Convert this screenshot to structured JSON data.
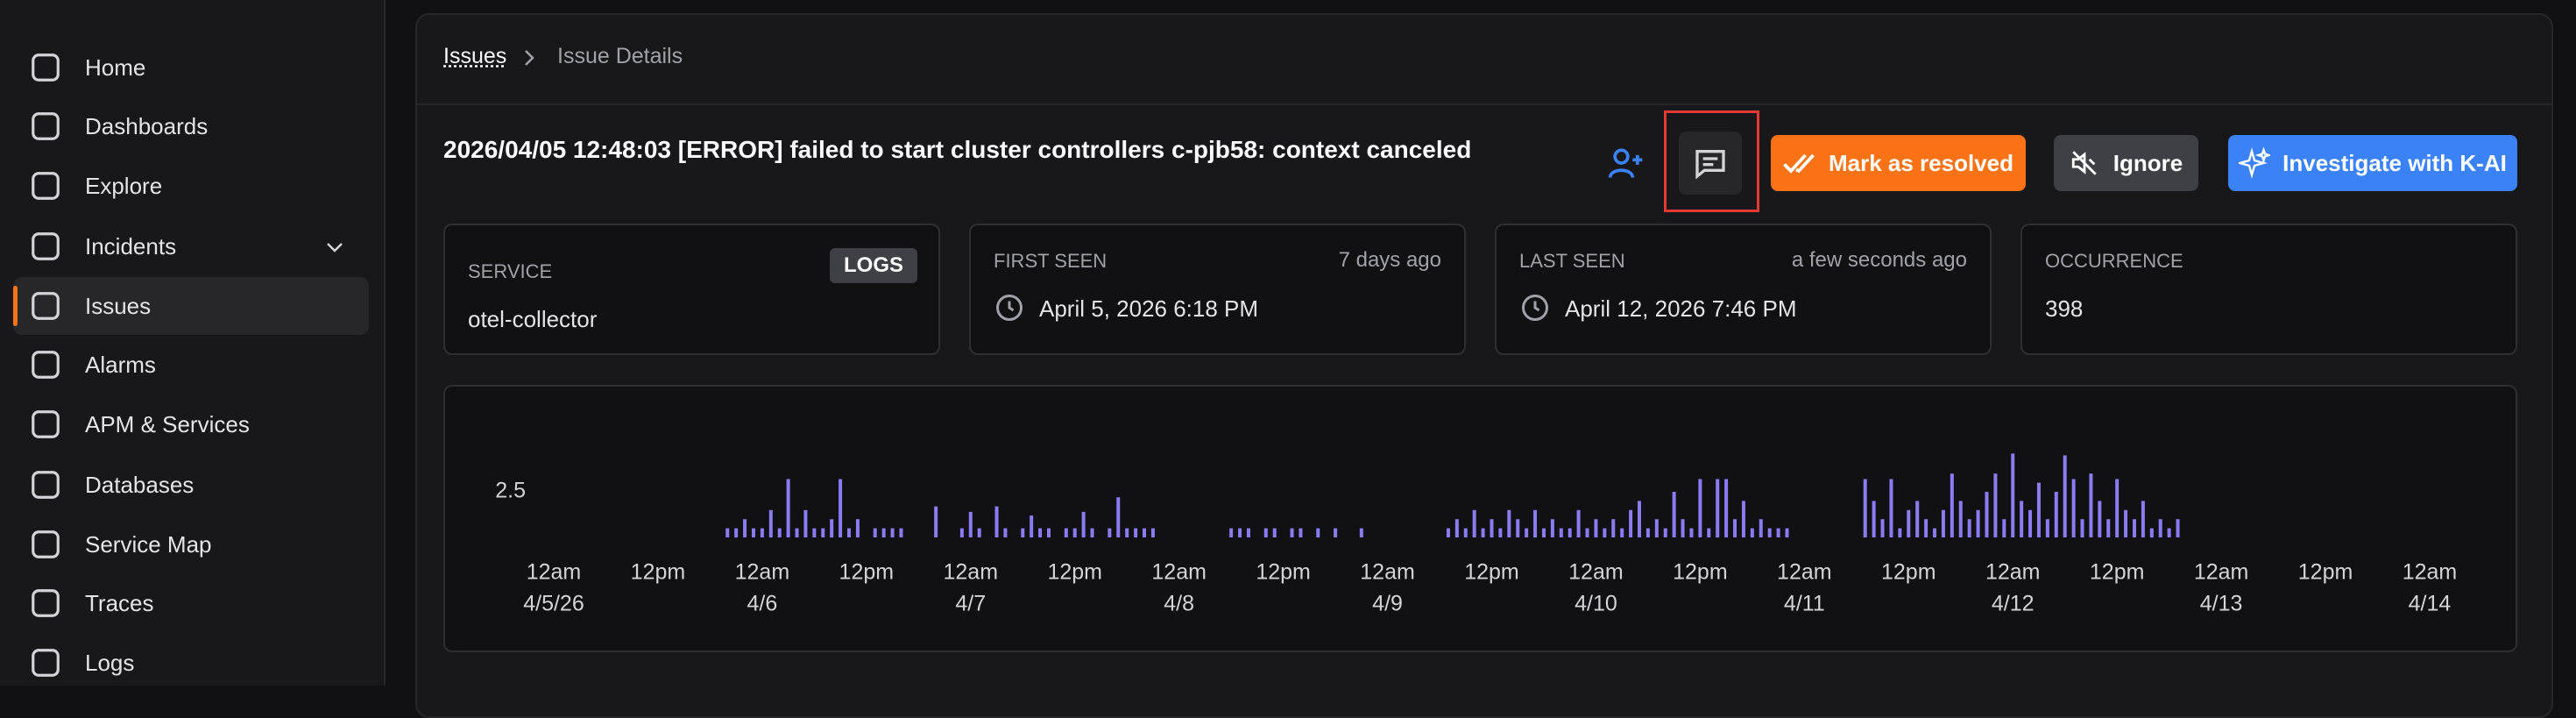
{
  "sidebar": {
    "items": [
      "Home",
      "Dashboards",
      "Explore",
      "Incidents",
      "Issues",
      "Alarms",
      "APM & Services",
      "Databases",
      "Service Map",
      "Traces",
      "Logs"
    ],
    "active_index": 4
  },
  "breadcrumb": [
    "Issues",
    "Issue Details"
  ],
  "issue": {
    "title": "2026/04/05 12:48:03 [ERROR] failed to start cluster controllers c-pjb58: context canceled",
    "actions": [
      "Mark as resolved",
      "Ignore",
      "Investigate with K-AI"
    ]
  },
  "cards": [
    {
      "label": "SERVICE",
      "badge": "LOGS",
      "value": "otel-collector"
    },
    {
      "label": "FIRST SEEN",
      "relative": "7 days ago",
      "value": "April 5, 2026 6:18 PM"
    },
    {
      "label": "LAST SEEN",
      "relative": "a few seconds ago",
      "value": "April 12, 2026 7:46 PM"
    },
    {
      "label": "OCCURRENCE",
      "value": 398
    }
  ],
  "chart_data": {
    "type": "bar",
    "color": "#8b7cf6",
    "x": [
      20,
      21,
      22,
      23,
      24,
      25,
      26,
      27,
      28,
      29,
      30,
      31,
      32,
      33,
      34,
      35,
      37,
      38,
      39,
      40,
      44,
      47,
      48,
      49,
      51,
      52,
      54,
      55,
      56,
      57,
      59,
      60,
      61,
      62,
      64,
      65,
      66,
      67,
      68,
      69,
      78,
      79,
      80,
      82,
      83,
      85,
      86,
      88,
      90,
      93,
      103,
      104,
      105,
      106,
      107,
      108,
      109,
      110,
      111,
      112,
      113,
      114,
      115,
      116,
      117,
      118,
      119,
      120,
      121,
      122,
      123,
      124,
      125,
      126,
      127,
      128,
      129,
      130,
      131,
      132,
      133,
      134,
      135,
      136,
      137,
      138,
      139,
      140,
      141,
      142,
      151,
      152,
      153,
      154,
      155,
      156,
      157,
      158,
      159,
      160,
      161,
      162,
      163,
      164,
      165,
      166,
      167,
      168,
      169,
      170,
      171,
      172,
      173,
      174,
      175,
      176,
      177,
      178,
      179,
      180,
      181,
      182,
      183,
      184,
      185,
      186,
      187
    ],
    "values": [
      0.5,
      0.5,
      1,
      0.5,
      0.5,
      1.5,
      0.5,
      3.2,
      0.5,
      1.5,
      0.5,
      0.5,
      1,
      3.2,
      0.5,
      1,
      0.5,
      0.5,
      0.5,
      0.5,
      1.7,
      0.5,
      1.4,
      0.5,
      1.7,
      0.5,
      0.5,
      1.2,
      0.5,
      0.5,
      0.5,
      0.5,
      1.4,
      0.5,
      0.5,
      2.2,
      0.5,
      0.5,
      0.5,
      0.5,
      0.5,
      0.5,
      0.5,
      0.5,
      0.5,
      0.5,
      0.5,
      0.5,
      0.5,
      0.5,
      0.5,
      1,
      0.5,
      1.5,
      0.5,
      1,
      0.5,
      1.5,
      1,
      0.5,
      1.5,
      0.5,
      1,
      0.5,
      0.5,
      1.5,
      0.5,
      1,
      0.5,
      1,
      0.5,
      1.5,
      2,
      0.5,
      1,
      0.5,
      2.5,
      1,
      0.5,
      3.2,
      0.5,
      3.2,
      3.2,
      1,
      2,
      0.5,
      1,
      0.5,
      0.5,
      0.5,
      3.2,
      2,
      1,
      3.2,
      0.5,
      1.5,
      2,
      1,
      0.5,
      1.5,
      3.5,
      2,
      1,
      1.5,
      2.5,
      3.5,
      1,
      4.6,
      2,
      1.5,
      3,
      1,
      2.5,
      4.5,
      3.2,
      1,
      3.5,
      2,
      1,
      3.2,
      1.5,
      1,
      2,
      0.5,
      1,
      0.5,
      1
    ],
    "xlim": [
      0,
      216
    ],
    "ylim": [
      0,
      5
    ],
    "yticks": [
      2.5
    ],
    "grid": false,
    "xticks": [
      {
        "value": 0,
        "label": "12am",
        "date": "4/5/26"
      },
      {
        "value": 12,
        "label": "12pm"
      },
      {
        "value": 24,
        "label": "12am",
        "date": "4/6"
      },
      {
        "value": 36,
        "label": "12pm"
      },
      {
        "value": 48,
        "label": "12am",
        "date": "4/7"
      },
      {
        "value": 60,
        "label": "12pm"
      },
      {
        "value": 72,
        "label": "12am",
        "date": "4/8"
      },
      {
        "value": 84,
        "label": "12pm"
      },
      {
        "value": 96,
        "label": "12am",
        "date": "4/9"
      },
      {
        "value": 108,
        "label": "12pm"
      },
      {
        "value": 120,
        "label": "12am",
        "date": "4/10"
      },
      {
        "value": 132,
        "label": "12pm"
      },
      {
        "value": 144,
        "label": "12am",
        "date": "4/11"
      },
      {
        "value": 156,
        "label": "12pm"
      },
      {
        "value": 168,
        "label": "12am",
        "date": "4/12"
      },
      {
        "value": 180,
        "label": "12pm"
      },
      {
        "value": 192,
        "label": "12am",
        "date": "4/13"
      },
      {
        "value": 204,
        "label": "12pm"
      },
      {
        "value": 216,
        "label": "12am",
        "date": "4/14"
      }
    ]
  }
}
